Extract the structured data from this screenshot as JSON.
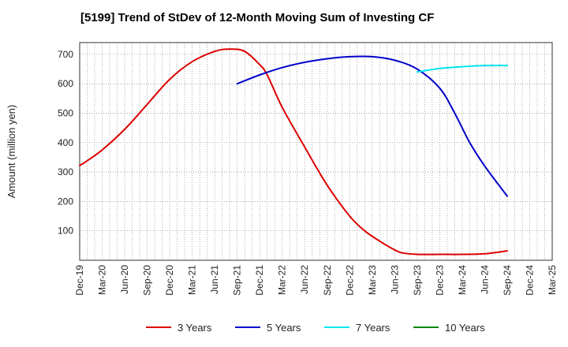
{
  "chart_data": {
    "type": "line",
    "title": "[5199]  Trend of StDev of 12-Month Moving Sum of Investing CF",
    "ylabel": "Amount (million yen)",
    "xlabel": "",
    "ylim": [
      0,
      740
    ],
    "yticks": [
      100,
      200,
      300,
      400,
      500,
      600,
      700
    ],
    "xlim": [
      "2019-12",
      "2025-03"
    ],
    "xticks": [
      "Dec-19",
      "Mar-20",
      "Jun-20",
      "Sep-20",
      "Dec-20",
      "Mar-21",
      "Jun-21",
      "Sep-21",
      "Dec-21",
      "Mar-22",
      "Jun-22",
      "Sep-22",
      "Dec-22",
      "Mar-23",
      "Jun-23",
      "Sep-23",
      "Dec-23",
      "Mar-24",
      "Jun-24",
      "Sep-24",
      "Dec-24",
      "Mar-25"
    ],
    "grid": true,
    "legend_position": "bottom",
    "series": [
      {
        "name": "3 Years",
        "color": "#dd0000",
        "points": [
          [
            "2019-12",
            322
          ],
          [
            "2020-01",
            338
          ],
          [
            "2020-03",
            375
          ],
          [
            "2020-06",
            445
          ],
          [
            "2020-09",
            530
          ],
          [
            "2020-12",
            615
          ],
          [
            "2021-03",
            675
          ],
          [
            "2021-06",
            710
          ],
          [
            "2021-08",
            718
          ],
          [
            "2021-10",
            710
          ],
          [
            "2021-12",
            665
          ],
          [
            "2022-01",
            630
          ],
          [
            "2022-03",
            520
          ],
          [
            "2022-06",
            385
          ],
          [
            "2022-09",
            255
          ],
          [
            "2022-12",
            150
          ],
          [
            "2023-02",
            100
          ],
          [
            "2023-04",
            65
          ],
          [
            "2023-06",
            35
          ],
          [
            "2023-07",
            25
          ],
          [
            "2023-09",
            20
          ],
          [
            "2023-12",
            20
          ],
          [
            "2024-03",
            20
          ],
          [
            "2024-06",
            22
          ],
          [
            "2024-09",
            32
          ]
        ]
      },
      {
        "name": "5 Years",
        "color": "#0000cc",
        "points": [
          [
            "2021-09",
            600
          ],
          [
            "2021-12",
            630
          ],
          [
            "2022-03",
            655
          ],
          [
            "2022-06",
            673
          ],
          [
            "2022-09",
            685
          ],
          [
            "2022-12",
            692
          ],
          [
            "2023-03",
            692
          ],
          [
            "2023-06",
            680
          ],
          [
            "2023-09",
            650
          ],
          [
            "2023-12",
            585
          ],
          [
            "2024-02",
            500
          ],
          [
            "2024-04",
            400
          ],
          [
            "2024-06",
            320
          ],
          [
            "2024-09",
            218
          ]
        ]
      },
      {
        "name": "7 Years",
        "color": "#00e5ee",
        "points": [
          [
            "2023-09",
            640
          ],
          [
            "2023-12",
            652
          ],
          [
            "2024-03",
            658
          ],
          [
            "2024-06",
            662
          ],
          [
            "2024-09",
            662
          ]
        ]
      },
      {
        "name": "10 Years",
        "color": "#008800",
        "points": []
      }
    ]
  }
}
